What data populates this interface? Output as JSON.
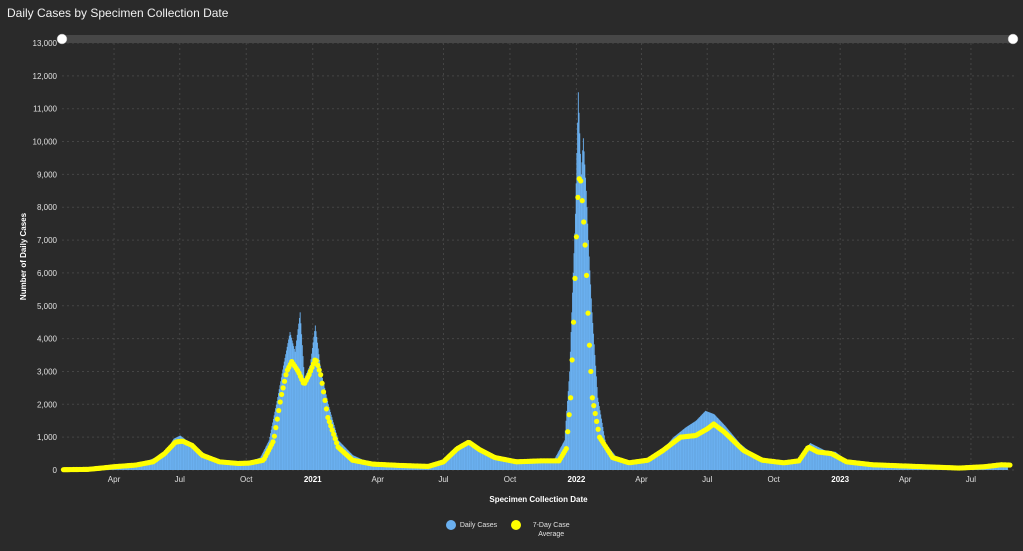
{
  "title": "Daily Cases by Specimen Collection Date",
  "colors": {
    "background": "#2a2a2a",
    "grid": "#454545",
    "bars": "#6ab0f0",
    "average": "#ffff00",
    "scrollbar": "#474747"
  },
  "legend": {
    "daily": "Daily Cases",
    "average": "7-Day Case Average"
  },
  "chart_data": {
    "type": "bar",
    "title": "Daily Cases by Specimen Collection Date",
    "xlabel": "Specimen Collection Date",
    "ylabel": "Number of Daily Cases",
    "ylim": [
      0,
      13000
    ],
    "yticks": [
      0,
      1000,
      2000,
      3000,
      4000,
      5000,
      6000,
      7000,
      8000,
      9000,
      10000,
      11000,
      12000,
      13000
    ],
    "ytick_labels": [
      "0",
      "1,000",
      "2,000",
      "3,000",
      "4,000",
      "5,000",
      "6,000",
      "7,000",
      "8,000",
      "9,000",
      "10,000",
      "11,000",
      "12,000",
      "13,000"
    ],
    "x_range": [
      "2020-01-20",
      "2023-08-31"
    ],
    "xticks": [
      {
        "date": "2020-04-01",
        "label": "Apr",
        "bold": false
      },
      {
        "date": "2020-07-01",
        "label": "Jul",
        "bold": false
      },
      {
        "date": "2020-10-01",
        "label": "Oct",
        "bold": false
      },
      {
        "date": "2021-01-01",
        "label": "2021",
        "bold": true
      },
      {
        "date": "2021-04-01",
        "label": "Apr",
        "bold": false
      },
      {
        "date": "2021-07-01",
        "label": "Jul",
        "bold": false
      },
      {
        "date": "2021-10-01",
        "label": "Oct",
        "bold": false
      },
      {
        "date": "2022-01-01",
        "label": "2022",
        "bold": true
      },
      {
        "date": "2022-04-01",
        "label": "Apr",
        "bold": false
      },
      {
        "date": "2022-07-01",
        "label": "Jul",
        "bold": false
      },
      {
        "date": "2022-10-01",
        "label": "Oct",
        "bold": false
      },
      {
        "date": "2023-01-01",
        "label": "2023",
        "bold": true
      },
      {
        "date": "2023-04-01",
        "label": "Apr",
        "bold": false
      },
      {
        "date": "2023-07-01",
        "label": "Jul",
        "bold": false
      }
    ],
    "grid": true,
    "legend_position": "bottom-center",
    "series": [
      {
        "name": "Daily Cases",
        "kind": "bar",
        "points": [
          [
            "2020-01-22",
            10
          ],
          [
            "2020-03-15",
            80
          ],
          [
            "2020-04-10",
            180
          ],
          [
            "2020-05-10",
            220
          ],
          [
            "2020-06-10",
            500
          ],
          [
            "2020-06-22",
            950
          ],
          [
            "2020-07-01",
            1050
          ],
          [
            "2020-07-10",
            900
          ],
          [
            "2020-07-25",
            650
          ],
          [
            "2020-08-15",
            320
          ],
          [
            "2020-09-10",
            180
          ],
          [
            "2020-10-01",
            220
          ],
          [
            "2020-10-20",
            380
          ],
          [
            "2020-11-01",
            900
          ],
          [
            "2020-11-12",
            2100
          ],
          [
            "2020-11-22",
            3300
          ],
          [
            "2020-11-30",
            4200
          ],
          [
            "2020-12-07",
            3600
          ],
          [
            "2020-12-14",
            4800
          ],
          [
            "2020-12-20",
            2800
          ],
          [
            "2020-12-28",
            3200
          ],
          [
            "2021-01-04",
            4400
          ],
          [
            "2021-01-12",
            3000
          ],
          [
            "2021-01-22",
            2000
          ],
          [
            "2021-02-05",
            900
          ],
          [
            "2021-02-25",
            450
          ],
          [
            "2021-03-20",
            220
          ],
          [
            "2021-04-20",
            160
          ],
          [
            "2021-05-20",
            120
          ],
          [
            "2021-06-20",
            120
          ],
          [
            "2021-07-10",
            450
          ],
          [
            "2021-07-25",
            780
          ],
          [
            "2021-08-05",
            900
          ],
          [
            "2021-08-20",
            650
          ],
          [
            "2021-09-15",
            350
          ],
          [
            "2021-10-15",
            260
          ],
          [
            "2021-11-10",
            300
          ],
          [
            "2021-12-01",
            330
          ],
          [
            "2021-12-15",
            900
          ],
          [
            "2021-12-22",
            3000
          ],
          [
            "2021-12-27",
            6000
          ],
          [
            "2021-12-30",
            7800
          ],
          [
            "2022-01-03",
            11500
          ],
          [
            "2022-01-07",
            9000
          ],
          [
            "2022-01-10",
            10100
          ],
          [
            "2022-01-14",
            8500
          ],
          [
            "2022-01-18",
            6500
          ],
          [
            "2022-01-22",
            4800
          ],
          [
            "2022-01-30",
            2200
          ],
          [
            "2022-02-10",
            800
          ],
          [
            "2022-03-01",
            280
          ],
          [
            "2022-04-01",
            250
          ],
          [
            "2022-04-25",
            500
          ],
          [
            "2022-05-15",
            1000
          ],
          [
            "2022-06-01",
            1300
          ],
          [
            "2022-06-15",
            1500
          ],
          [
            "2022-06-28",
            1800
          ],
          [
            "2022-07-10",
            1700
          ],
          [
            "2022-07-25",
            1350
          ],
          [
            "2022-08-15",
            800
          ],
          [
            "2022-09-10",
            330
          ],
          [
            "2022-10-10",
            230
          ],
          [
            "2022-11-01",
            260
          ],
          [
            "2022-11-20",
            820
          ],
          [
            "2022-12-10",
            600
          ],
          [
            "2022-12-25",
            550
          ],
          [
            "2023-01-10",
            280
          ],
          [
            "2023-02-10",
            180
          ],
          [
            "2023-04-01",
            120
          ],
          [
            "2023-06-01",
            70
          ],
          [
            "2023-07-10",
            100
          ],
          [
            "2023-08-05",
            220
          ],
          [
            "2023-08-20",
            120
          ]
        ]
      },
      {
        "name": "7-Day Case Average",
        "kind": "line-markers",
        "points": [
          [
            "2020-01-22",
            10
          ],
          [
            "2020-02-25",
            20
          ],
          [
            "2020-03-15",
            60
          ],
          [
            "2020-04-01",
            100
          ],
          [
            "2020-05-01",
            150
          ],
          [
            "2020-05-25",
            250
          ],
          [
            "2020-06-10",
            500
          ],
          [
            "2020-06-25",
            850
          ],
          [
            "2020-07-05",
            880
          ],
          [
            "2020-07-18",
            750
          ],
          [
            "2020-08-01",
            450
          ],
          [
            "2020-08-25",
            250
          ],
          [
            "2020-09-20",
            200
          ],
          [
            "2020-10-05",
            210
          ],
          [
            "2020-10-25",
            300
          ],
          [
            "2020-11-08",
            900
          ],
          [
            "2020-11-18",
            2200
          ],
          [
            "2020-11-26",
            3000
          ],
          [
            "2020-12-03",
            3300
          ],
          [
            "2020-12-12",
            3000
          ],
          [
            "2020-12-20",
            2600
          ],
          [
            "2020-12-27",
            2900
          ],
          [
            "2021-01-05",
            3400
          ],
          [
            "2021-01-12",
            2900
          ],
          [
            "2021-01-22",
            1600
          ],
          [
            "2021-02-05",
            700
          ],
          [
            "2021-02-25",
            300
          ],
          [
            "2021-03-25",
            180
          ],
          [
            "2021-05-01",
            140
          ],
          [
            "2021-06-10",
            110
          ],
          [
            "2021-07-01",
            250
          ],
          [
            "2021-07-20",
            650
          ],
          [
            "2021-08-05",
            850
          ],
          [
            "2021-08-20",
            620
          ],
          [
            "2021-09-10",
            380
          ],
          [
            "2021-10-10",
            250
          ],
          [
            "2021-11-15",
            280
          ],
          [
            "2021-12-08",
            280
          ],
          [
            "2021-12-18",
            650
          ],
          [
            "2021-12-24",
            2200
          ],
          [
            "2021-12-28",
            4500
          ],
          [
            "2021-12-31",
            6500
          ],
          [
            "2022-01-04",
            8900
          ],
          [
            "2022-01-07",
            8800
          ],
          [
            "2022-01-10",
            7900
          ],
          [
            "2022-01-14",
            6500
          ],
          [
            "2022-01-18",
            4200
          ],
          [
            "2022-01-23",
            2200
          ],
          [
            "2022-02-02",
            1000
          ],
          [
            "2022-02-20",
            380
          ],
          [
            "2022-03-15",
            220
          ],
          [
            "2022-04-10",
            300
          ],
          [
            "2022-05-01",
            600
          ],
          [
            "2022-05-25",
            1000
          ],
          [
            "2022-06-15",
            1050
          ],
          [
            "2022-07-01",
            1250
          ],
          [
            "2022-07-10",
            1400
          ],
          [
            "2022-07-25",
            1150
          ],
          [
            "2022-08-20",
            600
          ],
          [
            "2022-09-15",
            300
          ],
          [
            "2022-10-15",
            220
          ],
          [
            "2022-11-05",
            280
          ],
          [
            "2022-11-18",
            700
          ],
          [
            "2022-12-01",
            550
          ],
          [
            "2022-12-20",
            500
          ],
          [
            "2023-01-10",
            250
          ],
          [
            "2023-02-15",
            160
          ],
          [
            "2023-04-15",
            110
          ],
          [
            "2023-06-15",
            60
          ],
          [
            "2023-07-20",
            100
          ],
          [
            "2023-08-12",
            160
          ],
          [
            "2023-08-25",
            150
          ]
        ]
      }
    ]
  }
}
